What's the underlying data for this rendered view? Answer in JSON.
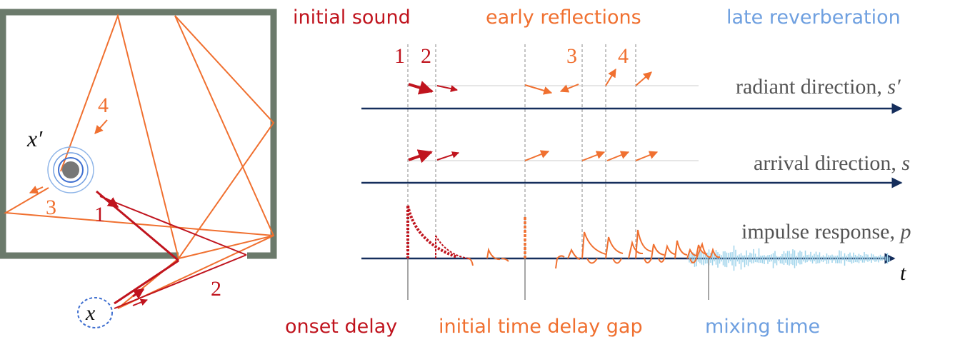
{
  "colors": {
    "initial": "#c0141e",
    "early": "#f07030",
    "late": "#6fa0e0",
    "late_wave": "#9ed3ea",
    "axis": "#152e5c",
    "wall": "#6b7a6b",
    "label_gray": "#555555",
    "guide": "#888888"
  },
  "header": {
    "initial_sound": "initial sound",
    "early_reflections": "early reflections",
    "late_reverberation": "late reverberation"
  },
  "rows": {
    "radiant": {
      "label": "radiant direction, ",
      "symbol": "s′"
    },
    "arrival": {
      "label": "arrival direction, ",
      "symbol": "s"
    },
    "impulse": {
      "label": "impulse response, ",
      "symbol": "p"
    }
  },
  "time_axis_label": "t",
  "peak_numbers": [
    "1",
    "2",
    "3",
    "4"
  ],
  "footer": {
    "onset_delay": "onset delay",
    "itdg": "initial time delay gap",
    "mixing_time": "mixing time"
  },
  "room": {
    "source_label": "x′",
    "listener_label": "x",
    "path_labels": [
      "1",
      "2",
      "3",
      "4"
    ]
  }
}
